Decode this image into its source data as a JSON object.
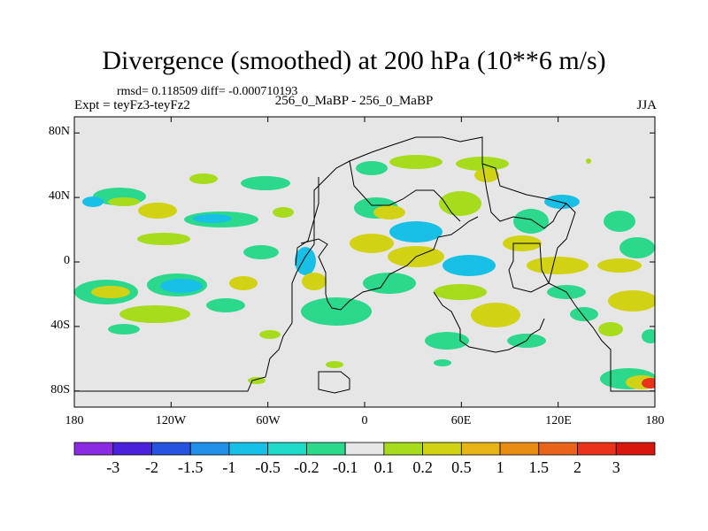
{
  "chart_data": {
    "type": "heatmap",
    "title": "Divergence (smoothed) at 200 hPa (10**6 m/s)",
    "stats_text": "rmsd= 0.118509 diff= -0.000710193",
    "expt_label": "Expt = teyFz3-teyFz2",
    "case_label": "256_0_MaBP - 256_0_MaBP",
    "season": "JJA",
    "x_axis": {
      "ticks": [
        "180",
        "120W",
        "60W",
        "0",
        "60E",
        "120E",
        "180"
      ],
      "range": [
        -180,
        180
      ]
    },
    "y_axis": {
      "ticks": [
        "80N",
        "40N",
        "0",
        "40S",
        "80S"
      ],
      "range": [
        -90,
        90
      ]
    },
    "colorbar": {
      "labels": [
        "-3",
        "-2",
        "-1.5",
        "-1",
        "-0.5",
        "-0.2",
        "-0.1",
        "0.1",
        "0.2",
        "0.5",
        "1",
        "1.5",
        "2",
        "3"
      ],
      "colors": [
        "#8a2be2",
        "#4b22dc",
        "#2653e0",
        "#1f8fe8",
        "#19c0e6",
        "#1ed9c8",
        "#2cd88c",
        "#e6e6e6",
        "#a6dc1c",
        "#d2d214",
        "#e6b414",
        "#e88c14",
        "#e8641a",
        "#e8321a",
        "#d8160e"
      ]
    },
    "background_color": "#e6e6e6"
  }
}
